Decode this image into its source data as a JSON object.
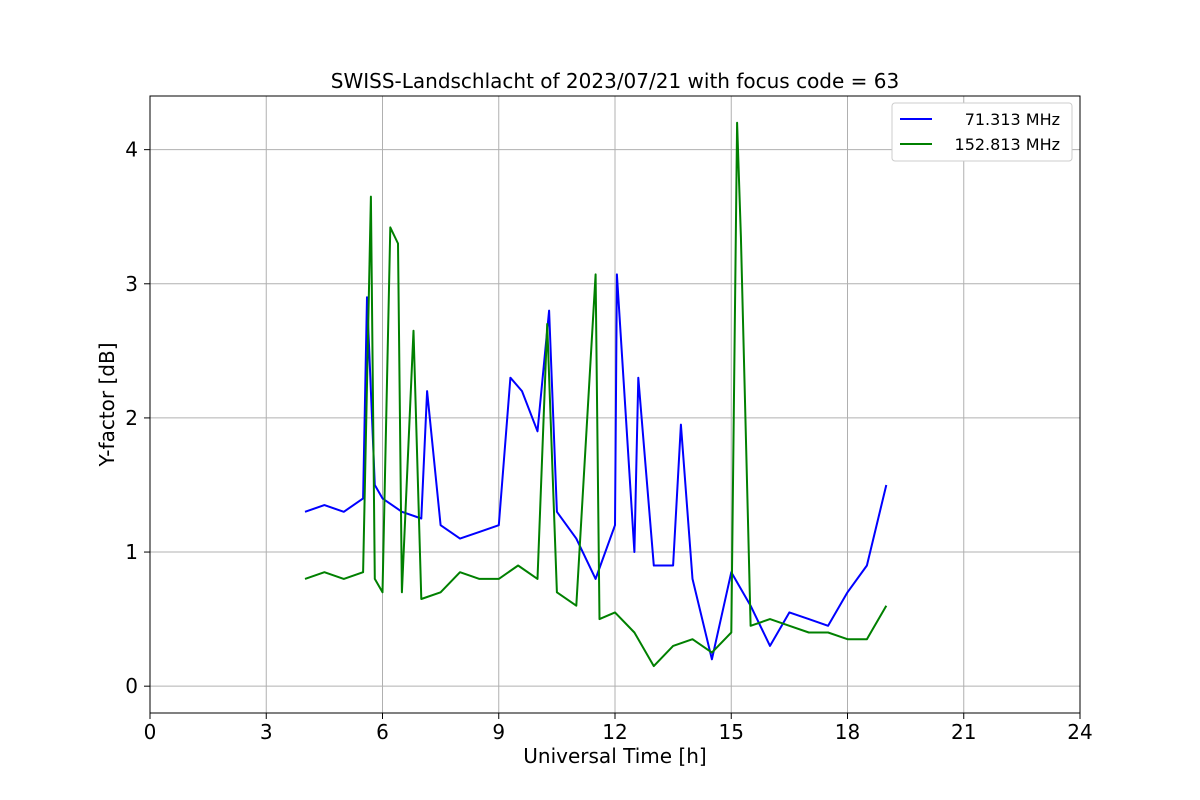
{
  "chart_data": {
    "type": "line",
    "title": "SWISS-Landschlacht of 2023/07/21 with focus code = 63",
    "xlabel": "Universal Time [h]",
    "ylabel": "Y-factor [dB]",
    "xlim": [
      0,
      24
    ],
    "ylim": [
      -0.2,
      4.4
    ],
    "x_ticks": [
      0,
      3,
      6,
      9,
      12,
      15,
      18,
      21,
      24
    ],
    "y_ticks": [
      0,
      1,
      2,
      3,
      4
    ],
    "grid": true,
    "legend_position": "top-right",
    "series": [
      {
        "name": "71.313 MHz",
        "color": "#0000ff",
        "x": [
          4.0,
          4.5,
          5.0,
          5.5,
          5.6,
          5.8,
          6.0,
          6.5,
          7.0,
          7.15,
          7.5,
          8.0,
          8.5,
          9.0,
          9.3,
          9.6,
          10.0,
          10.3,
          10.5,
          11.0,
          11.5,
          12.0,
          12.05,
          12.5,
          12.6,
          13.0,
          13.5,
          13.7,
          14.0,
          14.5,
          15.0,
          15.5,
          16.0,
          16.5,
          17.0,
          17.5,
          18.0,
          18.5,
          19.0
        ],
        "y": [
          1.3,
          1.35,
          1.3,
          1.4,
          2.9,
          1.5,
          1.4,
          1.3,
          1.25,
          2.2,
          1.2,
          1.1,
          1.15,
          1.2,
          2.3,
          2.2,
          1.9,
          2.8,
          1.3,
          1.1,
          0.8,
          1.2,
          3.07,
          1.0,
          2.3,
          0.9,
          0.9,
          1.95,
          0.8,
          0.2,
          0.85,
          0.6,
          0.3,
          0.55,
          0.5,
          0.45,
          0.7,
          0.9,
          1.5
        ]
      },
      {
        "name": "152.813 MHz",
        "color": "#008000",
        "x": [
          4.0,
          4.5,
          5.0,
          5.5,
          5.7,
          5.8,
          6.0,
          6.2,
          6.4,
          6.5,
          6.8,
          7.0,
          7.5,
          8.0,
          8.5,
          9.0,
          9.5,
          10.0,
          10.25,
          10.5,
          11.0,
          11.5,
          11.6,
          12.0,
          12.5,
          13.0,
          13.5,
          14.0,
          14.5,
          15.0,
          15.15,
          15.25,
          15.5,
          16.0,
          16.5,
          17.0,
          17.5,
          18.0,
          18.5,
          19.0
        ],
        "y": [
          0.8,
          0.85,
          0.8,
          0.85,
          3.65,
          0.8,
          0.7,
          3.42,
          3.3,
          0.7,
          2.65,
          0.65,
          0.7,
          0.85,
          0.8,
          0.8,
          0.9,
          0.8,
          2.7,
          0.7,
          0.6,
          3.07,
          0.5,
          0.55,
          0.4,
          0.15,
          0.3,
          0.35,
          0.25,
          0.4,
          4.2,
          3.35,
          0.45,
          0.5,
          0.45,
          0.4,
          0.4,
          0.35,
          0.35,
          0.6
        ]
      }
    ]
  }
}
